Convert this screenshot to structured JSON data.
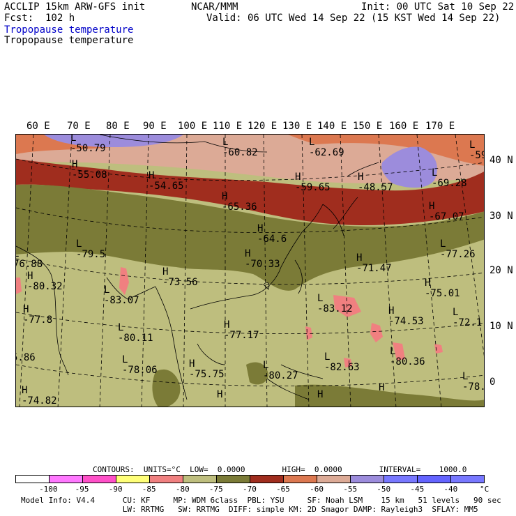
{
  "header": {
    "line1_left": "ACCLIP 15km ARW-GFS init",
    "line1_center": "NCAR/MMM",
    "line1_right": "Init: 00 UTC Sat 10 Sep 22",
    "line2_left": "Fcst:  102 h",
    "line2_right": "Valid: 06 UTC Wed 14 Sep 22 (15 KST Wed 14 Sep 22)",
    "field_title_1": "Tropopause temperature",
    "field_title_2": "Tropopause temperature"
  },
  "axes": {
    "longitudes": [
      "60 E",
      "70 E",
      "80 E",
      "90 E",
      "100 E",
      "110 E",
      "120 E",
      "130 E",
      "140 E",
      "150 E",
      "160 E",
      "170 E"
    ],
    "latitudes": [
      "40 N",
      "30 N",
      "20 N",
      "10 N",
      "0"
    ]
  },
  "map_labels": [
    {
      "type": "L",
      "value": "-50.79"
    },
    {
      "type": "L",
      "value": "-60.82"
    },
    {
      "type": "L",
      "value": "-62.69"
    },
    {
      "type": "L",
      "value": "-59"
    },
    {
      "type": "H",
      "value": "-55.08"
    },
    {
      "type": "H",
      "value": "-54.65"
    },
    {
      "type": "H",
      "value": "-59.65"
    },
    {
      "type": "H",
      "value": "-48.57"
    },
    {
      "type": "L",
      "value": "-69.28"
    },
    {
      "type": "H",
      "value": "-65.36"
    },
    {
      "type": "H",
      "value": "-67.07"
    },
    {
      "type": "H",
      "value": "-64.6"
    },
    {
      "type": "L",
      "value": "-79.5"
    },
    {
      "type": "L",
      "value": "76.88"
    },
    {
      "type": "H",
      "value": "-70.33"
    },
    {
      "type": "H",
      "value": "-71.47"
    },
    {
      "type": "L",
      "value": "-77.26"
    },
    {
      "type": "H",
      "value": "-80.32"
    },
    {
      "type": "H",
      "value": "-73.56"
    },
    {
      "type": "L",
      "value": "-83.07"
    },
    {
      "type": "H",
      "value": "-75.01"
    },
    {
      "type": "L",
      "value": "-83.12"
    },
    {
      "type": "H",
      "value": "-77.8"
    },
    {
      "type": "H",
      "value": "-74.53"
    },
    {
      "type": "L",
      "value": "-72.1"
    },
    {
      "type": "L",
      "value": "-80.11"
    },
    {
      "type": "H",
      "value": "-77.17"
    },
    {
      "type": "L",
      "value": "-80.36"
    },
    {
      "type": "",
      "value": "5.86"
    },
    {
      "type": "L",
      "value": "-78.06"
    },
    {
      "type": "H",
      "value": "-75.75"
    },
    {
      "type": "L",
      "value": "-80.27"
    },
    {
      "type": "L",
      "value": "-82.63"
    },
    {
      "type": "L",
      "value": "-78."
    },
    {
      "type": "H",
      "value": "-74.82"
    },
    {
      "type": "H",
      "value": ""
    },
    {
      "type": "H",
      "value": ""
    },
    {
      "type": "H",
      "value": ""
    }
  ],
  "legend": {
    "contours_line": "CONTOURS:  UNITS=°C  LOW=  0.0000        HIGH=  0.0000        INTERVAL=    1000.0",
    "colors": [
      "#ffffff",
      "#ff78ff",
      "#ff50c8",
      "#ffff78",
      "#f08080",
      "#bebe7e",
      "#7b7b37",
      "#a02d1e",
      "#dc7850",
      "#dcaa96",
      "#9c8cdc",
      "#7878ff",
      "#6464ff",
      "#7878ff"
    ],
    "ticks": [
      "-100",
      "-95",
      "-90",
      "-85",
      "-80",
      "-75",
      "-70",
      "-65",
      "-60",
      "-55",
      "-50",
      "-45",
      "-40",
      "°C"
    ]
  },
  "footer": {
    "line1": "Model Info: V4.4      CU: KF     MP: WDM 6class  PBL: YSU     SF: Noah LSM    15 km   51 levels   90 sec",
    "line2": "                      LW: RRTMG   SW: RRTMG  DIFF: simple KM: 2D Smagor DAMP: Rayleigh3  SFLAY: MM5"
  }
}
